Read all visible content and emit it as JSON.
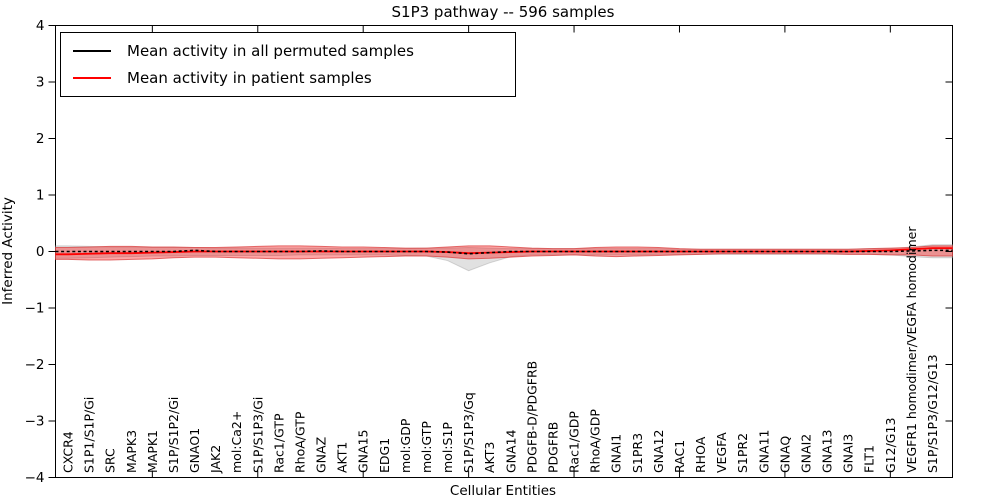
{
  "chart_data": {
    "type": "line",
    "title": "S1P3 pathway -- 596 samples",
    "xlabel": "Cellular Entities",
    "ylabel": "Inferred Activity",
    "ylim": [
      -4,
      4
    ],
    "yticks": {
      "values": [
        -4,
        -3,
        -2,
        -1,
        0,
        1,
        2,
        3,
        4
      ],
      "labels": [
        "−4",
        "−3",
        "−2",
        "−1",
        "0",
        "1",
        "2",
        "3",
        "4"
      ]
    },
    "xtick_major_indices": [
      4,
      9,
      14,
      19,
      24,
      29,
      34,
      39
    ],
    "grid": false,
    "legend_position": "upper left",
    "categories": [
      "CXCR4",
      "S1P1/S1P/Gi",
      "SRC",
      "MAPK3",
      "MAPK1",
      "S1P/S1P2/Gi",
      "GNAO1",
      "JAK2",
      "mol:Ca2+",
      "S1P/S1P3/Gi",
      "Rac1/GTP",
      "RhoA/GTP",
      "GNAZ",
      "AKT1",
      "GNA15",
      "EDG1",
      "mol:GDP",
      "mol:GTP",
      "mol:S1P",
      "S1P/S1P3/Gq",
      "AKT3",
      "GNA14",
      "PDGFB-D/PDGFRB",
      "PDGFRB",
      "Rac1/GDP",
      "RhoA/GDP",
      "GNAI1",
      "S1PR3",
      "GNA12",
      "RAC1",
      "RHOA",
      "VEGFA",
      "S1PR2",
      "GNA11",
      "GNAQ",
      "GNAI2",
      "GNA13",
      "GNAI3",
      "FLT1",
      "G12/G13",
      "VEGFR1 homodimer/VEGFA homodimer",
      "S1P/S1P3/G12/G13"
    ],
    "series": [
      {
        "name": "Mean activity in all permuted samples",
        "color": "#000000",
        "line_style": "dashed",
        "band_color": "#888888",
        "band_alpha": 0.25,
        "values": [
          0,
          0,
          0,
          0,
          0,
          0,
          0.02,
          0,
          0,
          0,
          0,
          0,
          0.01,
          0,
          0,
          0,
          0,
          0,
          -0.01,
          -0.04,
          -0.02,
          0,
          0,
          0,
          0,
          0,
          0,
          0,
          0,
          0,
          0,
          0,
          0,
          0,
          0,
          0,
          0,
          0,
          0,
          0,
          0.01,
          0.02
        ],
        "band_upper": [
          0.1,
          0.09,
          0.08,
          0.08,
          0.07,
          0.07,
          0.07,
          0.06,
          0.06,
          0.06,
          0.06,
          0.06,
          0.06,
          0.05,
          0.05,
          0.05,
          0.05,
          0.06,
          0.06,
          0.07,
          0.06,
          0.05,
          0.05,
          0.05,
          0.05,
          0.05,
          0.05,
          0.05,
          0.05,
          0.04,
          0.04,
          0.04,
          0.04,
          0.04,
          0.04,
          0.04,
          0.04,
          0.04,
          0.05,
          0.05,
          0.08,
          0.12
        ],
        "band_lower": [
          -0.12,
          -0.11,
          -0.1,
          -0.09,
          -0.08,
          -0.08,
          -0.07,
          -0.07,
          -0.07,
          -0.07,
          -0.07,
          -0.06,
          -0.06,
          -0.06,
          -0.06,
          -0.06,
          -0.07,
          -0.08,
          -0.16,
          -0.34,
          -0.2,
          -0.09,
          -0.06,
          -0.06,
          -0.06,
          -0.06,
          -0.06,
          -0.06,
          -0.05,
          -0.05,
          -0.05,
          -0.05,
          -0.05,
          -0.05,
          -0.05,
          -0.05,
          -0.05,
          -0.05,
          -0.05,
          -0.06,
          -0.09,
          -0.11
        ]
      },
      {
        "name": "Mean activity in patient samples",
        "color": "#ff0000",
        "line_style": "solid",
        "band_color": "#ff0000",
        "band_alpha": 0.35,
        "values": [
          -0.05,
          -0.04,
          -0.03,
          -0.03,
          -0.02,
          -0.01,
          0,
          0,
          0,
          0,
          0,
          0,
          0,
          0,
          0,
          0,
          0,
          0,
          -0.01,
          -0.03,
          -0.02,
          -0.01,
          0,
          0,
          0,
          0,
          0,
          0,
          0,
          0,
          0,
          0,
          0,
          0,
          0,
          0,
          0,
          0,
          0.01,
          0.02,
          0.04,
          0.06
        ],
        "band_upper": [
          0.07,
          0.08,
          0.09,
          0.09,
          0.08,
          0.08,
          0.07,
          0.07,
          0.08,
          0.09,
          0.1,
          0.1,
          0.09,
          0.08,
          0.08,
          0.07,
          0.06,
          0.06,
          0.08,
          0.1,
          0.1,
          0.08,
          0.06,
          0.05,
          0.05,
          0.07,
          0.08,
          0.08,
          0.07,
          0.05,
          0.04,
          0.04,
          0.04,
          0.04,
          0.04,
          0.04,
          0.04,
          0.04,
          0.05,
          0.06,
          0.07,
          0.1
        ],
        "band_lower": [
          -0.14,
          -0.15,
          -0.15,
          -0.14,
          -0.13,
          -0.11,
          -0.1,
          -0.1,
          -0.11,
          -0.12,
          -0.13,
          -0.13,
          -0.12,
          -0.11,
          -0.1,
          -0.09,
          -0.08,
          -0.08,
          -0.1,
          -0.13,
          -0.12,
          -0.1,
          -0.08,
          -0.07,
          -0.06,
          -0.08,
          -0.09,
          -0.08,
          -0.07,
          -0.06,
          -0.05,
          -0.04,
          -0.04,
          -0.04,
          -0.04,
          -0.04,
          -0.04,
          -0.05,
          -0.05,
          -0.06,
          -0.06,
          -0.08
        ]
      }
    ]
  }
}
